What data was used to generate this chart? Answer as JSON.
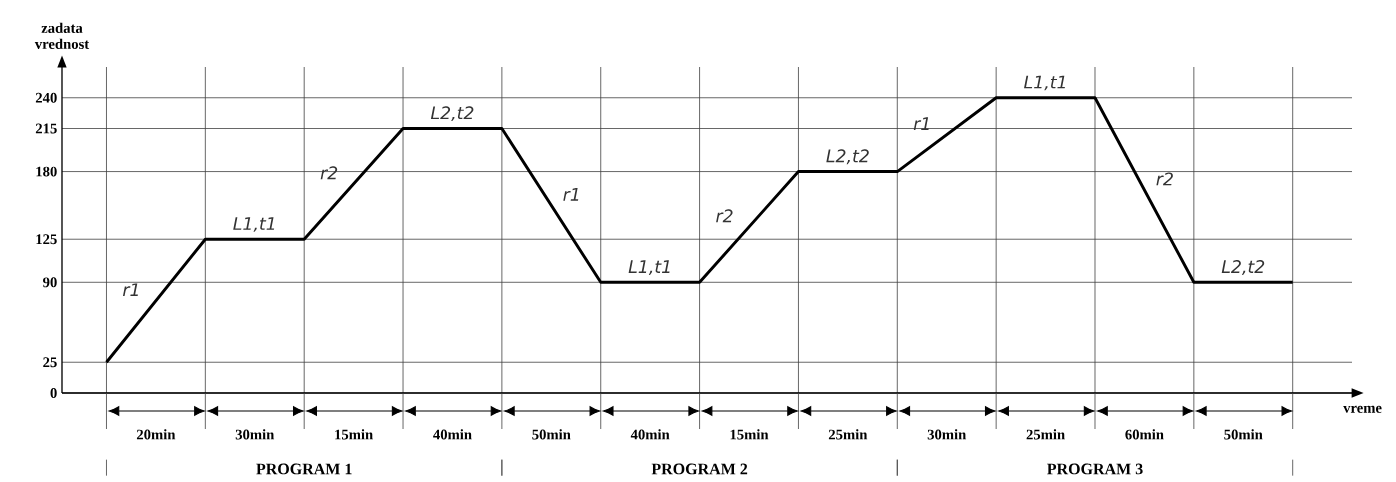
{
  "chart_data": {
    "type": "line",
    "xlabel": "vreme",
    "ylabel": "zadata vrednost",
    "categories": [
      null,
      null,
      null,
      null,
      null,
      null,
      null,
      null,
      null,
      null,
      null,
      null,
      null
    ],
    "series": [
      {
        "color": "#000000",
        "values": [
          25,
          125,
          125,
          215,
          215,
          90,
          90,
          180,
          180,
          240,
          240,
          90,
          90
        ]
      }
    ],
    "ylim": [
      0,
      265
    ],
    "yticks": [
      0,
      25,
      90,
      125,
      180,
      215,
      240
    ],
    "tick_labels": "y",
    "grid": true,
    "annotations": [
      "20min",
      "30min",
      "15min",
      "40min",
      "50min",
      "40min",
      "15min",
      "25min",
      "30min",
      "25min",
      "60min",
      "50min",
      "PROGRAM 1",
      "PROGRAM 2",
      "PROGRAM 3",
      "r1",
      "L1,t1",
      "r2",
      "L2,t2",
      "r1",
      "L1,t1",
      "r2",
      "L2,t2",
      "r1",
      "L1,t1",
      "r2",
      "L2,t2"
    ]
  }
}
